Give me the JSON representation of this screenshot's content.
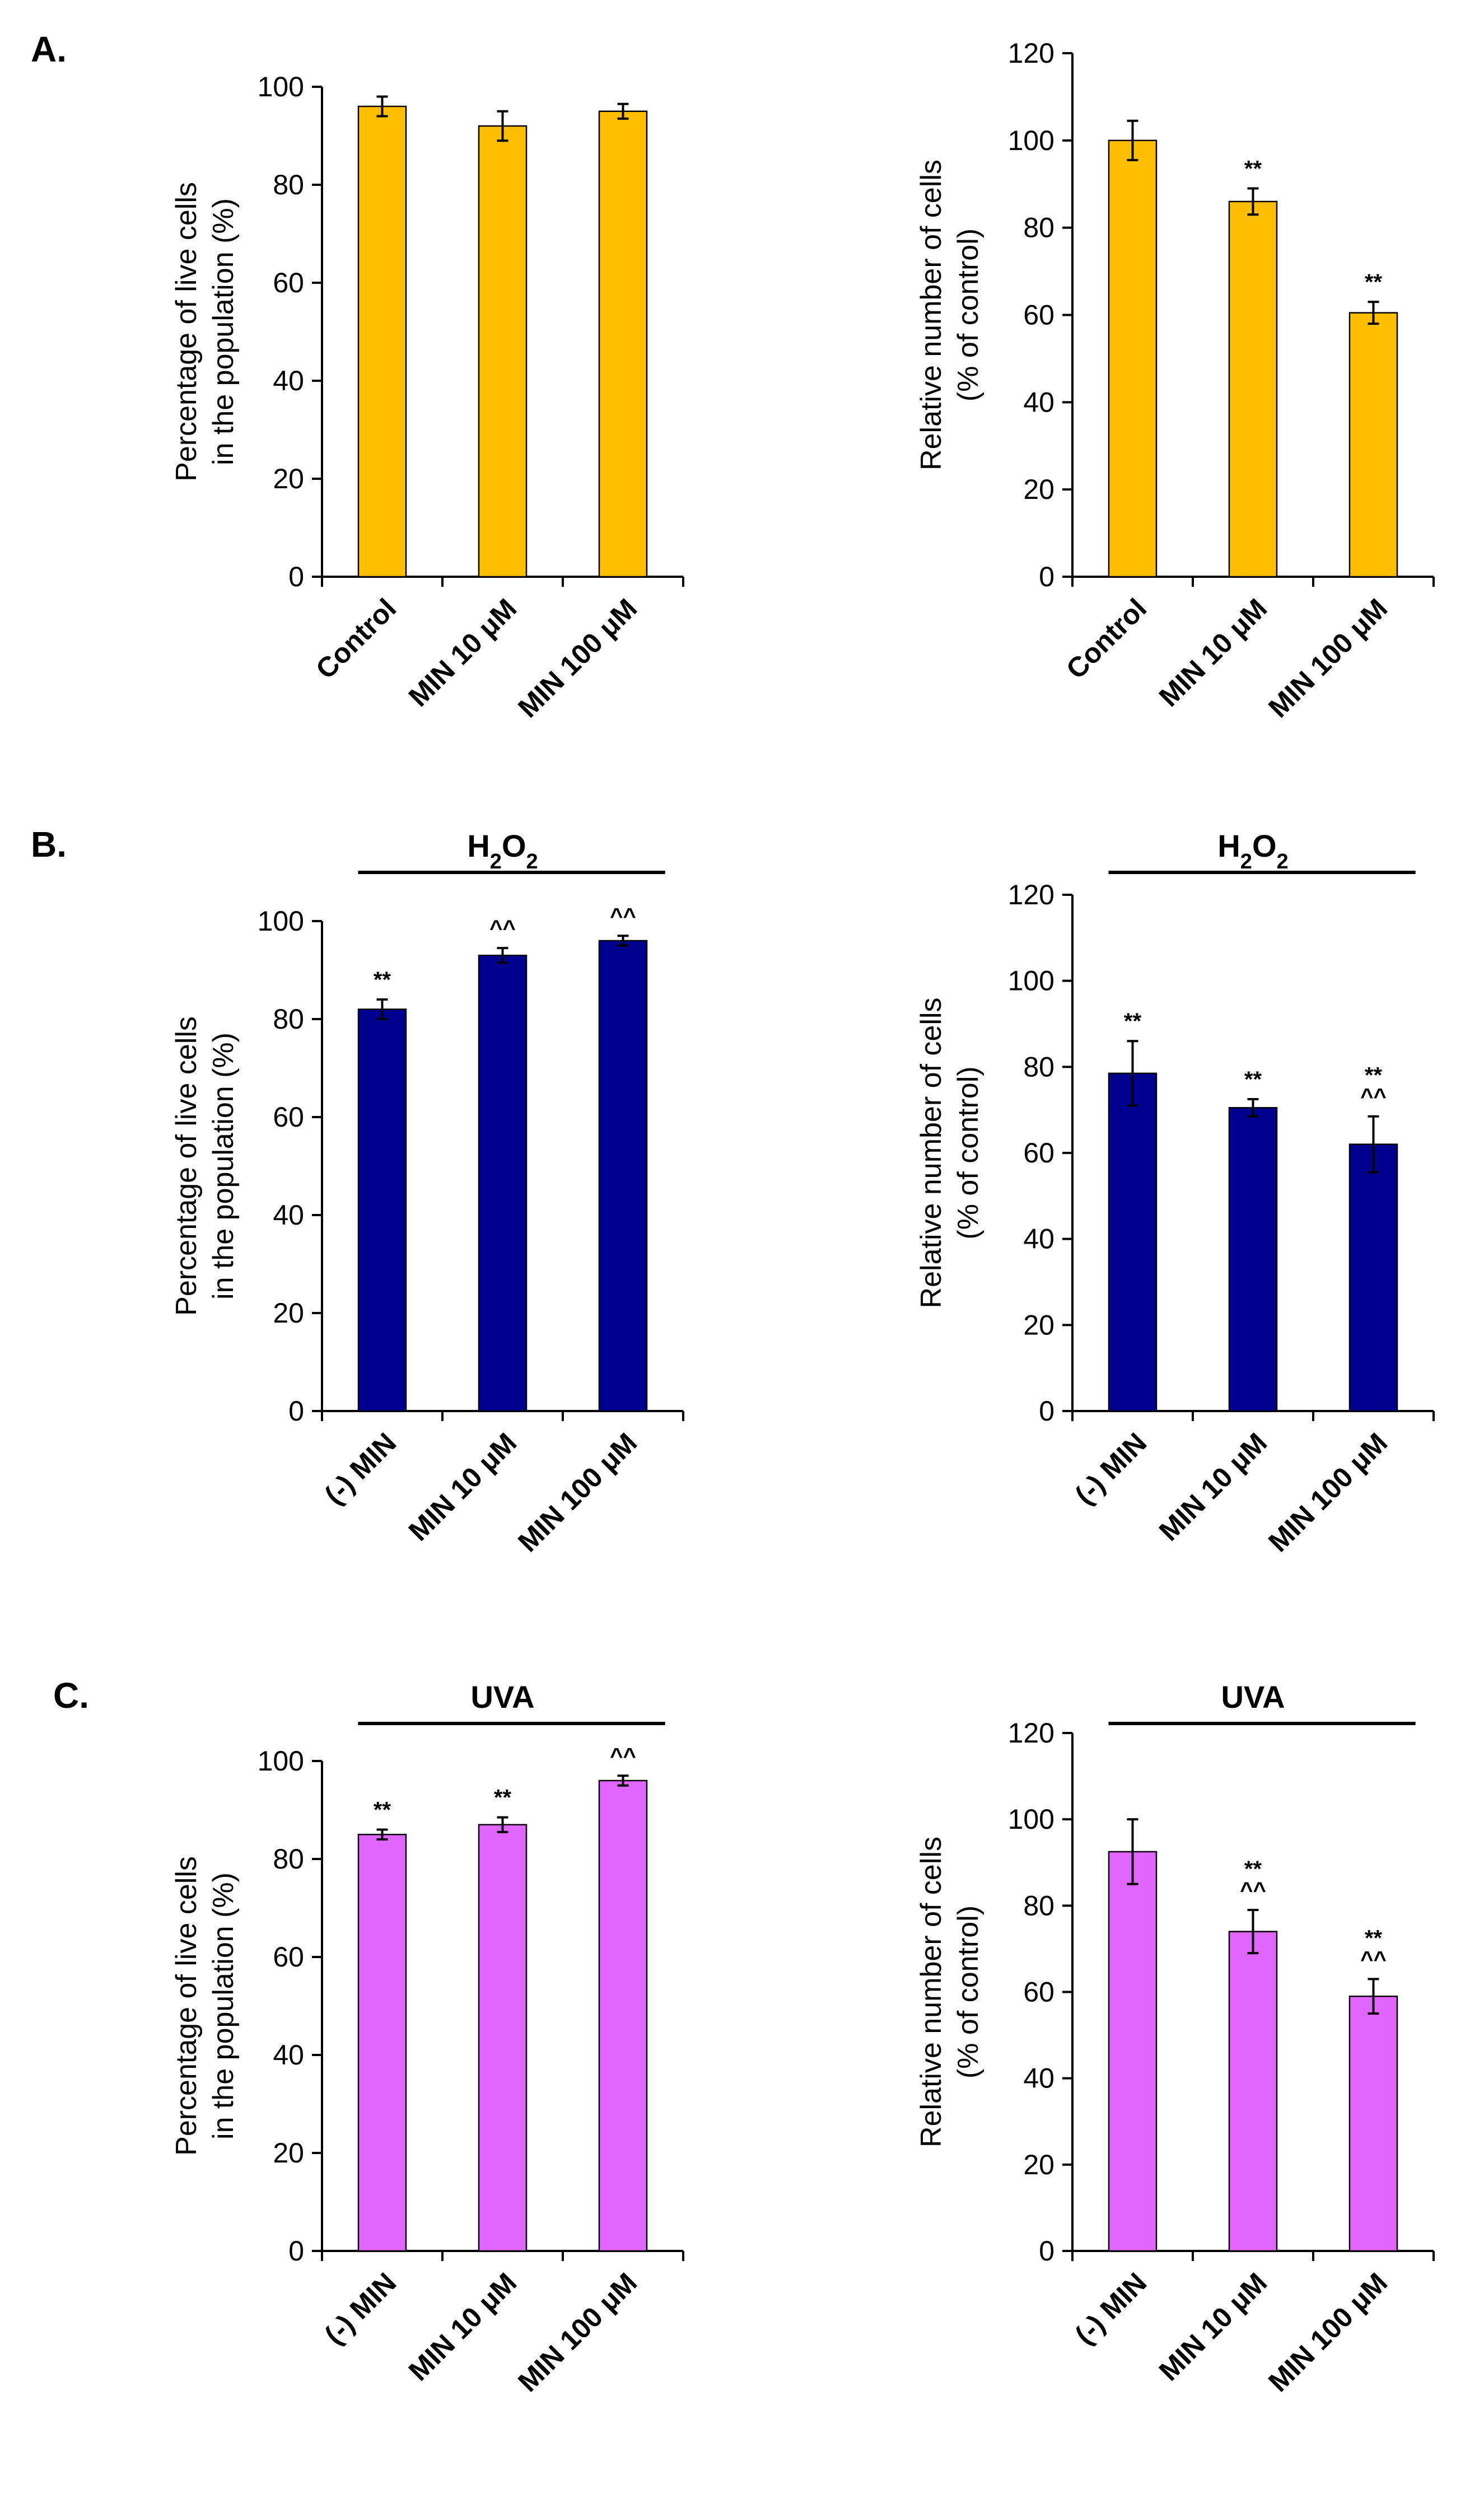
{
  "panel_labels": [
    "A.",
    "B.",
    "C."
  ],
  "chart_data": [
    {
      "id": "A-left",
      "panel": "A.",
      "type": "bar",
      "condition": "",
      "ylabel_lines": [
        "Percentage of live cells",
        "in the population (%)"
      ],
      "categories": [
        "Control",
        "MIN 10 μM",
        "MIN 100 μM"
      ],
      "values": [
        96,
        92,
        95
      ],
      "errors": [
        2,
        3,
        1.5
      ],
      "annotations": [
        [],
        [],
        []
      ],
      "ylim": [
        0,
        100
      ],
      "yticks": [
        0,
        20,
        40,
        60,
        80,
        100
      ],
      "bar_color": "#FFBF00"
    },
    {
      "id": "A-right",
      "panel": "A.",
      "type": "bar",
      "condition": "",
      "ylabel_lines": [
        "Relative number of cells",
        "(% of control)"
      ],
      "categories": [
        "Control",
        "MIN 10 μM",
        "MIN 100 μM"
      ],
      "values": [
        100,
        86,
        60.5
      ],
      "errors": [
        4.5,
        3,
        2.5
      ],
      "annotations": [
        [],
        [
          "**"
        ],
        [
          "**"
        ]
      ],
      "ylim": [
        0,
        120
      ],
      "yticks": [
        0,
        20,
        40,
        60,
        80,
        100,
        120
      ],
      "bar_color": "#FFBF00"
    },
    {
      "id": "B-left",
      "panel": "B.",
      "type": "bar",
      "condition": "H2O2",
      "ylabel_lines": [
        "Percentage of live cells",
        "in the population (%)"
      ],
      "categories": [
        "(-) MIN",
        "MIN 10 μM",
        "MIN 100 μM"
      ],
      "values": [
        82,
        93,
        96
      ],
      "errors": [
        2,
        1.5,
        1
      ],
      "annotations": [
        [
          "**"
        ],
        [
          "^^"
        ],
        [
          "^^"
        ]
      ],
      "ylim": [
        0,
        100
      ],
      "yticks": [
        0,
        20,
        40,
        60,
        80,
        100
      ],
      "bar_color": "#000090"
    },
    {
      "id": "B-right",
      "panel": "B.",
      "type": "bar",
      "condition": "H2O2",
      "ylabel_lines": [
        "Relative number of cells",
        "(% of control)"
      ],
      "categories": [
        "(-) MIN",
        "MIN 10 μM",
        "MIN 100 μM"
      ],
      "values": [
        78.5,
        70.5,
        62
      ],
      "errors": [
        7.5,
        2,
        6.5
      ],
      "annotations": [
        [
          "**"
        ],
        [
          "**"
        ],
        [
          "**",
          "^^"
        ]
      ],
      "ylim": [
        0,
        120
      ],
      "yticks": [
        0,
        20,
        40,
        60,
        80,
        100,
        120
      ],
      "bar_color": "#000090"
    },
    {
      "id": "C-left",
      "panel": "C.",
      "type": "bar",
      "condition": "UVA",
      "ylabel_lines": [
        "Percentage of live cells",
        "in the population (%)"
      ],
      "categories": [
        "(-) MIN",
        "MIN 10 μM",
        "MIN 100 μM"
      ],
      "values": [
        85,
        87,
        96
      ],
      "errors": [
        1,
        1.5,
        1
      ],
      "annotations": [
        [
          "**"
        ],
        [
          "**"
        ],
        [
          "^^"
        ]
      ],
      "ylim": [
        0,
        100
      ],
      "yticks": [
        0,
        20,
        40,
        60,
        80,
        100
      ],
      "bar_color": "#E066FF"
    },
    {
      "id": "C-right",
      "panel": "C.",
      "type": "bar",
      "condition": "UVA",
      "ylabel_lines": [
        "Relative number of cells",
        "(% of control)"
      ],
      "categories": [
        "(-) MIN",
        "MIN 10 μM",
        "MIN 100 μM"
      ],
      "values": [
        92.5,
        74,
        59
      ],
      "errors": [
        7.5,
        5,
        4
      ],
      "annotations": [
        [],
        [
          "**",
          "^^"
        ],
        [
          "**",
          "^^"
        ]
      ],
      "ylim": [
        0,
        120
      ],
      "yticks": [
        0,
        20,
        40,
        60,
        80,
        100,
        120
      ],
      "bar_color": "#E066FF"
    }
  ]
}
